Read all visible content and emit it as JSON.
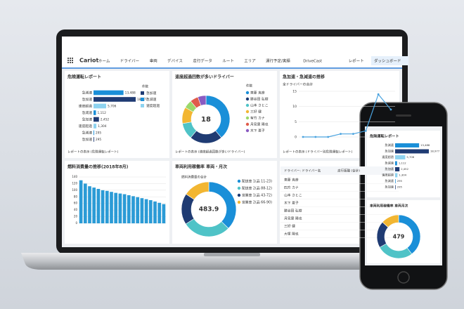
{
  "app": {
    "logo": "Cariot",
    "nav": [
      "ホーム",
      "ドライバー",
      "車両",
      "デバイス",
      "走行データ",
      "ルート",
      "エリア",
      "運行予定/実績",
      "DriveCast",
      "レポート",
      "ダッシュボード"
    ],
    "active": 10
  },
  "panels": {
    "danger": {
      "title": "危険運転レポート",
      "legend_title": "件数",
      "legend": [
        "急加速",
        "急減速",
        "速度超過"
      ],
      "colors": [
        "#1f3b73",
        "#1a8fd8",
        "#8ed3f0"
      ],
      "bars": [
        {
          "label": "急減速",
          "value": 13488,
          "value_label": "13,488"
        },
        {
          "label": "急加速",
          "value": 18977,
          "value_label": "18,977"
        },
        {
          "label": "速度超過",
          "value": 5706,
          "value_label": "5,706"
        },
        {
          "label": "急減速",
          "value": 1112,
          "value_label": "1,112"
        },
        {
          "label": "急加速",
          "value": 2452,
          "value_label": "2,452"
        },
        {
          "label": "速度超過",
          "value": 1304,
          "value_label": "1,304"
        },
        {
          "label": "急減速",
          "value": 295,
          "value_label": "295"
        },
        {
          "label": "急加速",
          "value": 295,
          "value_label": "295"
        }
      ],
      "link": "レポートの表示 (危険運転レポート)"
    },
    "speeding": {
      "title": "速度超過回数が多いドライバー",
      "center": "18",
      "legend_title": "件数",
      "segments": [
        {
          "name": "東藤 克彦",
          "value": 7,
          "color": "#1a8fd8"
        },
        {
          "name": "勝谷田 弘樹",
          "value": 4,
          "color": "#1f3b73"
        },
        {
          "name": "山本 さとこ",
          "value": 2,
          "color": "#4fc3c7"
        },
        {
          "name": "三好 健",
          "value": 2,
          "color": "#f2b632"
        },
        {
          "name": "有竹 カナ",
          "value": 1,
          "color": "#9bd86b"
        },
        {
          "name": "月見里 陽也",
          "value": 1,
          "color": "#e05c4b"
        },
        {
          "name": "木下 夏子",
          "value": 1,
          "color": "#8a5bc2"
        }
      ],
      "link": "レポートの表示 (速度超過回数が多いドライバー)"
    },
    "trend": {
      "title": "急加速・急減速の推移",
      "subtitle": "全ドライバーの合計",
      "color": "#4aa3df",
      "values": [
        0,
        0,
        0,
        1,
        1,
        2,
        14,
        9
      ],
      "ylim": [
        0,
        15
      ],
      "yticks": [
        0,
        5,
        10,
        15
      ],
      "link": "レポートの表示 (ドライバー別危険運転レポート)"
    },
    "fuel": {
      "title": "燃料消費量の推移(2018年8月)",
      "color": "#2b9bd6",
      "values": [
        130,
        120,
        112,
        108,
        104,
        100,
        98,
        95,
        92,
        90,
        88,
        85,
        82,
        79,
        76,
        73,
        70,
        66,
        62,
        58
      ],
      "ylim": [
        0,
        140
      ],
      "yticks": [
        0,
        20,
        40,
        60,
        80,
        100,
        120,
        140
      ]
    },
    "usage": {
      "title": "車両利用稼働率 車両・月次",
      "subtitle": "燃料消費量の合計",
      "center": "483.9",
      "segments": [
        {
          "name": "配送車 1(品 11-23)",
          "value": 180.5,
          "color": "#1a8fd8"
        },
        {
          "name": "配送車 2(品 88-12)",
          "value": 138.6,
          "color": "#4fc3c7"
        },
        {
          "name": "営業車 1(品 43-72)",
          "value": 89.2,
          "color": "#1f3b73"
        },
        {
          "name": "営業車 2(品 66-90)",
          "value": 75.6,
          "color": "#f2b632"
        }
      ]
    },
    "table": {
      "columns": [
        "ドライバー: ドライバー名",
        "走行距離 (合計)"
      ],
      "rows": [
        "東藤 克彦",
        "四方 カナ",
        "山本 さとこ",
        "木下 夏子",
        "勝谷田 弘樹",
        "月見里 陽也",
        "三好 健",
        "大塚 陽也"
      ]
    }
  },
  "phone": {
    "title": "危険運転レポート",
    "donut_title": "車両利用稼働率 車両月次",
    "center": "479",
    "segments": [
      {
        "value": 190,
        "color": "#1a8fd8"
      },
      {
        "value": 130,
        "color": "#4fc3c7"
      },
      {
        "value": 95,
        "color": "#1f3b73"
      },
      {
        "value": 64,
        "color": "#f2b632"
      }
    ]
  }
}
